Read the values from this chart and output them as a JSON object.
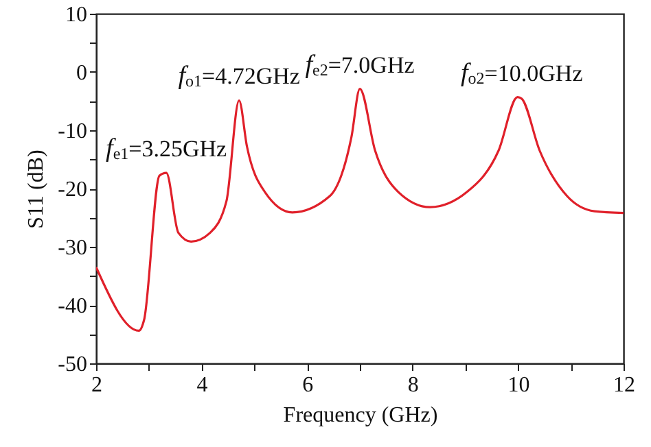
{
  "chart_data": {
    "type": "line",
    "xlabel": "Frequency (GHz)",
    "ylabel": "S11 (dB)",
    "x": [
      2,
      2.81,
      2.91,
      3.2,
      3.33,
      3.56,
      3.8,
      4.16,
      4.47,
      4.71,
      4.86,
      5.2,
      5.72,
      6.43,
      6.84,
      7.0,
      7.29,
      7.73,
      8.33,
      9.03,
      9.63,
      9.99,
      10.07,
      10.41,
      10.93,
      11.45,
      12
    ],
    "series": [
      {
        "color": "#e0202a",
        "values": [
          -33.5,
          -44.4,
          -42.5,
          -17.8,
          -17.3,
          -27.6,
          -29.1,
          -27.6,
          -22.2,
          -4.9,
          -12.8,
          -20.6,
          -24.1,
          -21.3,
          -11.2,
          -2.9,
          -13.5,
          -20.6,
          -23.2,
          -20.6,
          -13.5,
          -4.3,
          -4.6,
          -13.5,
          -21.3,
          -23.9,
          -24.2
        ]
      }
    ],
    "xlim": [
      2,
      12
    ],
    "xticks": [
      2,
      {
        "value": 3,
        "label": null
      },
      4,
      {
        "value": 5,
        "label": null
      },
      6,
      {
        "value": 7,
        "label": null
      },
      8,
      {
        "value": 9,
        "label": null
      },
      10,
      {
        "value": 11,
        "label": null
      },
      12
    ],
    "ylim": [
      -50,
      10
    ],
    "yticks": [
      -50,
      {
        "value": -45,
        "label": null
      },
      -40,
      {
        "value": -35,
        "label": null
      },
      -30,
      {
        "value": -25,
        "label": null
      },
      -20,
      {
        "value": -15,
        "label": null
      },
      -10,
      {
        "value": -5,
        "label": null
      },
      0,
      {
        "value": 5,
        "label": null
      },
      10
    ],
    "grid": false,
    "marker": "none",
    "line_style": "solid",
    "annotations": [
      {
        "text": "f$_{e1}$=3.25GHz",
        "x": 3.33,
        "y": -17.3
      },
      {
        "text": "f$_{o1}$=4.72GHz",
        "x": 4.71,
        "y": -4.9
      },
      {
        "text": "f$_{e2}$=7.0GHz",
        "x": 7.0,
        "y": -2.9
      },
      {
        "text": "f$_{o2}$=10.0GHz",
        "x": 10.07,
        "y": -4.3
      }
    ]
  }
}
